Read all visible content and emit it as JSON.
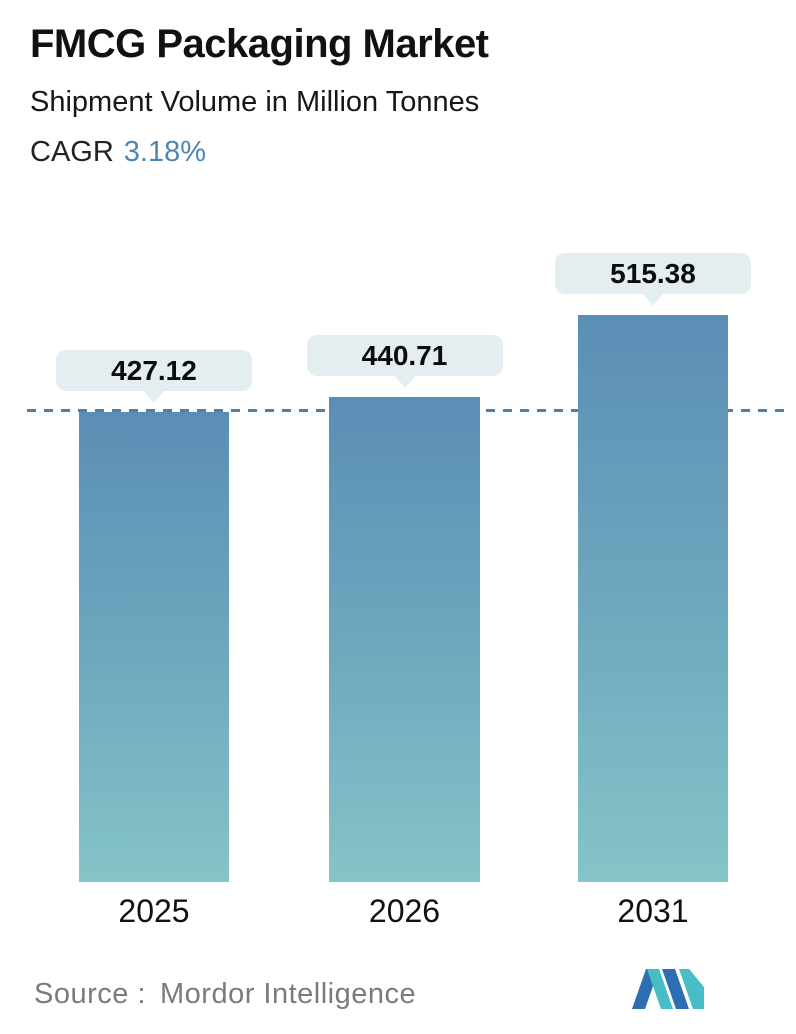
{
  "header": {
    "title": "FMCG Packaging Market",
    "subtitle": "Shipment Volume in Million Tonnes",
    "cagr_label": "CAGR",
    "cagr_value": "3.18%"
  },
  "chart_data": {
    "type": "bar",
    "categories": [
      "2025",
      "2026",
      "2031"
    ],
    "values": [
      427.12,
      440.71,
      515.38
    ],
    "value_labels": [
      "427.12",
      "440.71",
      "515.38"
    ],
    "title": "FMCG Packaging Market",
    "subtitle": "Shipment Volume in Million Tonnes",
    "cagr_percent": 3.18,
    "ylim": [
      0,
      515.38
    ],
    "reference_line_value": 427.12,
    "grid": false,
    "legend": false,
    "bar_gradient_top": "#5a8eb5",
    "bar_gradient_bottom": "#85c4c8",
    "label_pill_color": "#e4edf0",
    "reference_line_color": "#4d7fa9"
  },
  "footer": {
    "source_label": "Source :",
    "source_value": "Mordor Intelligence",
    "logo_icon": "mordor-intelligence-logo",
    "logo_blue": "#2e6fb3",
    "logo_teal": "#48bdc5"
  },
  "colors": {
    "accent_blue": "#4d87b5",
    "text_dark": "#111111",
    "text_gray": "#7b7b7b",
    "background": "#ffffff"
  }
}
